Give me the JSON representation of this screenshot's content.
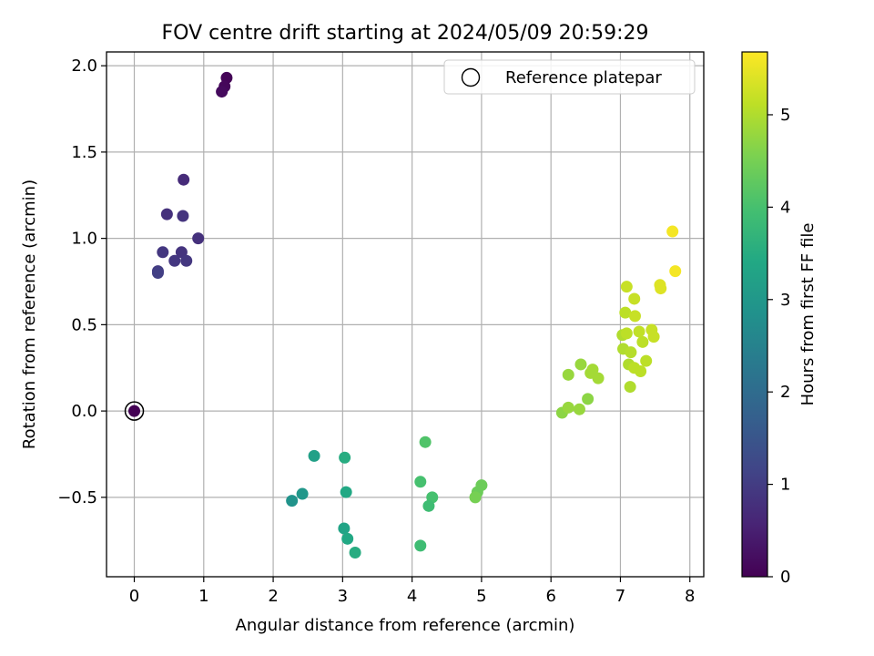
{
  "chart_data": {
    "type": "scatter",
    "title": "FOV centre drift starting at 2024/05/09 20:59:29",
    "xlabel": "Angular distance from reference (arcmin)",
    "ylabel": "Rotation from reference (arcmin)",
    "xlim": [
      -0.4,
      8.2
    ],
    "ylim": [
      -0.96,
      2.08
    ],
    "xticks": [
      0,
      1,
      2,
      3,
      4,
      5,
      6,
      7,
      8
    ],
    "xtick_labels": [
      "0",
      "1",
      "2",
      "3",
      "4",
      "5",
      "6",
      "7",
      "8"
    ],
    "yticks": [
      -0.5,
      0.0,
      0.5,
      1.0,
      1.5,
      2.0
    ],
    "ytick_labels": [
      "−0.5",
      "0.0",
      "0.5",
      "1.0",
      "1.5",
      "2.0"
    ],
    "grid": true,
    "legend": {
      "position": "upper-right",
      "entries": [
        "Reference platepar"
      ]
    },
    "colorbar": {
      "label": "Hours from first FF file",
      "colormap": "viridis",
      "range": [
        0,
        5.68
      ],
      "ticks": [
        0,
        1,
        2,
        3,
        4,
        5
      ],
      "tick_labels": [
        "0",
        "1",
        "2",
        "3",
        "4",
        "5"
      ]
    },
    "reference": {
      "x": 0.0,
      "y": 0.0
    },
    "points": [
      {
        "x": 0.0,
        "y": 0.0,
        "h": 0.0
      },
      {
        "x": 1.33,
        "y": 1.93,
        "h": 0.05
      },
      {
        "x": 1.3,
        "y": 1.88,
        "h": 0.1
      },
      {
        "x": 1.26,
        "y": 1.85,
        "h": 0.15
      },
      {
        "x": 0.71,
        "y": 1.34,
        "h": 0.7
      },
      {
        "x": 0.47,
        "y": 1.14,
        "h": 0.8
      },
      {
        "x": 0.7,
        "y": 1.13,
        "h": 0.85
      },
      {
        "x": 0.92,
        "y": 1.0,
        "h": 0.8
      },
      {
        "x": 0.41,
        "y": 0.92,
        "h": 0.9
      },
      {
        "x": 0.68,
        "y": 0.92,
        "h": 0.85
      },
      {
        "x": 0.58,
        "y": 0.87,
        "h": 0.9
      },
      {
        "x": 0.75,
        "y": 0.87,
        "h": 0.9
      },
      {
        "x": 0.34,
        "y": 0.81,
        "h": 1.0
      },
      {
        "x": 0.34,
        "y": 0.8,
        "h": 1.05
      },
      {
        "x": 2.27,
        "y": -0.52,
        "h": 2.9
      },
      {
        "x": 2.42,
        "y": -0.48,
        "h": 3.0
      },
      {
        "x": 2.59,
        "y": -0.26,
        "h": 3.2
      },
      {
        "x": 3.03,
        "y": -0.27,
        "h": 3.5
      },
      {
        "x": 3.05,
        "y": -0.47,
        "h": 3.4
      },
      {
        "x": 3.02,
        "y": -0.68,
        "h": 3.3
      },
      {
        "x": 3.07,
        "y": -0.74,
        "h": 3.4
      },
      {
        "x": 3.18,
        "y": -0.82,
        "h": 3.5
      },
      {
        "x": 4.19,
        "y": -0.18,
        "h": 4.1
      },
      {
        "x": 4.12,
        "y": -0.41,
        "h": 4.0
      },
      {
        "x": 4.29,
        "y": -0.5,
        "h": 4.0
      },
      {
        "x": 4.24,
        "y": -0.55,
        "h": 3.9
      },
      {
        "x": 4.12,
        "y": -0.78,
        "h": 3.9
      },
      {
        "x": 5.0,
        "y": -0.43,
        "h": 4.4
      },
      {
        "x": 4.94,
        "y": -0.47,
        "h": 4.4
      },
      {
        "x": 4.91,
        "y": -0.5,
        "h": 4.5
      },
      {
        "x": 6.16,
        "y": -0.01,
        "h": 4.7
      },
      {
        "x": 6.25,
        "y": 0.02,
        "h": 4.8
      },
      {
        "x": 6.41,
        "y": 0.01,
        "h": 4.8
      },
      {
        "x": 6.53,
        "y": 0.07,
        "h": 4.7
      },
      {
        "x": 6.25,
        "y": 0.21,
        "h": 4.8
      },
      {
        "x": 6.43,
        "y": 0.27,
        "h": 4.8
      },
      {
        "x": 6.57,
        "y": 0.22,
        "h": 4.9
      },
      {
        "x": 6.6,
        "y": 0.24,
        "h": 4.9
      },
      {
        "x": 6.68,
        "y": 0.19,
        "h": 4.9
      },
      {
        "x": 7.14,
        "y": 0.14,
        "h": 5.0
      },
      {
        "x": 7.12,
        "y": 0.27,
        "h": 5.0
      },
      {
        "x": 7.2,
        "y": 0.25,
        "h": 5.1
      },
      {
        "x": 7.29,
        "y": 0.23,
        "h": 5.1
      },
      {
        "x": 7.37,
        "y": 0.29,
        "h": 5.1
      },
      {
        "x": 7.04,
        "y": 0.36,
        "h": 5.0
      },
      {
        "x": 7.15,
        "y": 0.34,
        "h": 5.05
      },
      {
        "x": 7.32,
        "y": 0.4,
        "h": 5.1
      },
      {
        "x": 7.03,
        "y": 0.44,
        "h": 5.0
      },
      {
        "x": 7.09,
        "y": 0.45,
        "h": 5.1
      },
      {
        "x": 7.27,
        "y": 0.46,
        "h": 5.15
      },
      {
        "x": 7.45,
        "y": 0.47,
        "h": 5.2
      },
      {
        "x": 7.48,
        "y": 0.43,
        "h": 5.2
      },
      {
        "x": 7.07,
        "y": 0.57,
        "h": 5.1
      },
      {
        "x": 7.21,
        "y": 0.55,
        "h": 5.2
      },
      {
        "x": 7.2,
        "y": 0.65,
        "h": 5.2
      },
      {
        "x": 7.09,
        "y": 0.72,
        "h": 5.2
      },
      {
        "x": 7.57,
        "y": 0.73,
        "h": 5.4
      },
      {
        "x": 7.58,
        "y": 0.71,
        "h": 5.4
      },
      {
        "x": 7.79,
        "y": 0.81,
        "h": 5.6
      },
      {
        "x": 7.75,
        "y": 1.04,
        "h": 5.6
      }
    ]
  }
}
